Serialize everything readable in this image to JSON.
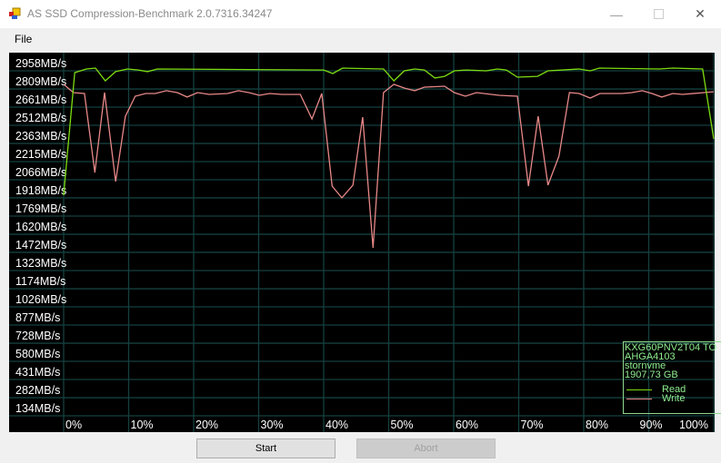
{
  "window": {
    "title": "AS SSD Compression-Benchmark 2.0.7316.34247",
    "minimize_icon": "minimize-icon",
    "maximize_icon": "maximize-icon",
    "close_icon": "close-icon"
  },
  "menu": {
    "file": "File"
  },
  "buttons": {
    "start": "Start",
    "abort": "Abort"
  },
  "legend": {
    "device": "KXG60PNV2T04 TO",
    "firmware": "AHGA4103",
    "driver": "stornvme",
    "size": "1907,73 GB",
    "read": "Read",
    "write": "Write"
  },
  "colors": {
    "read": "#7ddc10",
    "write": "#e88888",
    "grid": "#14403f",
    "background": "#000000",
    "legend_text": "#90ee90"
  },
  "chart_data": {
    "type": "line",
    "y_tick_labels": [
      "2958MB/s",
      "2809MB/s",
      "2661MB/s",
      "2512MB/s",
      "2363MB/s",
      "2215MB/s",
      "2066MB/s",
      "1918MB/s",
      "1769MB/s",
      "1620MB/s",
      "1472MB/s",
      "1323MB/s",
      "1174MB/s",
      "1026MB/s",
      "877MB/s",
      "728MB/s",
      "580MB/s",
      "431MB/s",
      "282MB/s",
      "134MB/s"
    ],
    "y_ticks": [
      2958,
      2809,
      2661,
      2512,
      2363,
      2215,
      2066,
      1918,
      1769,
      1620,
      1472,
      1323,
      1174,
      1026,
      877,
      728,
      580,
      431,
      282,
      134
    ],
    "x_tick_labels": [
      "0%",
      "10%",
      "20%",
      "30%",
      "40%",
      "50%",
      "60%",
      "70%",
      "80%",
      "90%",
      "100%"
    ],
    "x_ticks": [
      0,
      10,
      20,
      30,
      40,
      50,
      60,
      70,
      80,
      90,
      100
    ],
    "xlim": [
      0,
      100
    ],
    "grid": true,
    "legend_position": "bottom-right",
    "series": [
      {
        "name": "Read",
        "points": [
          [
            0,
            1940
          ],
          [
            1.7,
            2943
          ],
          [
            3.5,
            2973
          ],
          [
            4.9,
            2980
          ],
          [
            6.4,
            2876
          ],
          [
            8.0,
            2951
          ],
          [
            9.8,
            2973
          ],
          [
            11.5,
            2965
          ],
          [
            12.9,
            2951
          ],
          [
            14.4,
            2973
          ],
          [
            40.0,
            2965
          ],
          [
            41.4,
            2936
          ],
          [
            42.9,
            2980
          ],
          [
            49.2,
            2973
          ],
          [
            50.8,
            2876
          ],
          [
            52.4,
            2958
          ],
          [
            54.0,
            2973
          ],
          [
            55.5,
            2965
          ],
          [
            57.1,
            2899
          ],
          [
            58.6,
            2913
          ],
          [
            60.1,
            2958
          ],
          [
            62.0,
            2965
          ],
          [
            65.0,
            2958
          ],
          [
            66.7,
            2973
          ],
          [
            68.1,
            2965
          ],
          [
            69.8,
            2906
          ],
          [
            72.9,
            2913
          ],
          [
            74.5,
            2958
          ],
          [
            79.3,
            2973
          ],
          [
            81.0,
            2958
          ],
          [
            82.4,
            2980
          ],
          [
            91.6,
            2973
          ],
          [
            93.7,
            2980
          ],
          [
            98.3,
            2973
          ],
          [
            100,
            2401
          ]
        ]
      },
      {
        "name": "Write",
        "points": [
          [
            0,
            2847
          ],
          [
            1.5,
            2780
          ],
          [
            3.2,
            2772
          ],
          [
            4.8,
            2126
          ],
          [
            6.3,
            2780
          ],
          [
            8.0,
            2052
          ],
          [
            9.5,
            2586
          ],
          [
            11.0,
            2750
          ],
          [
            12.6,
            2772
          ],
          [
            14.1,
            2772
          ],
          [
            15.8,
            2795
          ],
          [
            17.5,
            2780
          ],
          [
            19.0,
            2743
          ],
          [
            20.6,
            2780
          ],
          [
            22.4,
            2765
          ],
          [
            25.2,
            2772
          ],
          [
            26.9,
            2795
          ],
          [
            28.5,
            2780
          ],
          [
            30.1,
            2757
          ],
          [
            31.7,
            2772
          ],
          [
            33.6,
            2765
          ],
          [
            36.4,
            2765
          ],
          [
            38.2,
            2564
          ],
          [
            39.7,
            2772
          ],
          [
            41.3,
            2014
          ],
          [
            42.8,
            1918
          ],
          [
            44.5,
            2022
          ],
          [
            46.0,
            2579
          ],
          [
            47.6,
            1509
          ],
          [
            49.2,
            2780
          ],
          [
            50.8,
            2847
          ],
          [
            52.4,
            2817
          ],
          [
            54.0,
            2795
          ],
          [
            55.5,
            2824
          ],
          [
            58.6,
            2832
          ],
          [
            60.1,
            2780
          ],
          [
            61.8,
            2750
          ],
          [
            63.5,
            2780
          ],
          [
            67.0,
            2757
          ],
          [
            69.8,
            2750
          ],
          [
            71.5,
            2014
          ],
          [
            73.0,
            2586
          ],
          [
            74.5,
            2022
          ],
          [
            76.2,
            2260
          ],
          [
            77.8,
            2780
          ],
          [
            79.3,
            2772
          ],
          [
            81.0,
            2735
          ],
          [
            82.5,
            2772
          ],
          [
            85.9,
            2772
          ],
          [
            87.4,
            2780
          ],
          [
            89.0,
            2795
          ],
          [
            90.5,
            2772
          ],
          [
            92.0,
            2743
          ],
          [
            93.7,
            2772
          ],
          [
            95.2,
            2765
          ],
          [
            98.5,
            2780
          ],
          [
            100,
            2787
          ]
        ]
      }
    ]
  }
}
